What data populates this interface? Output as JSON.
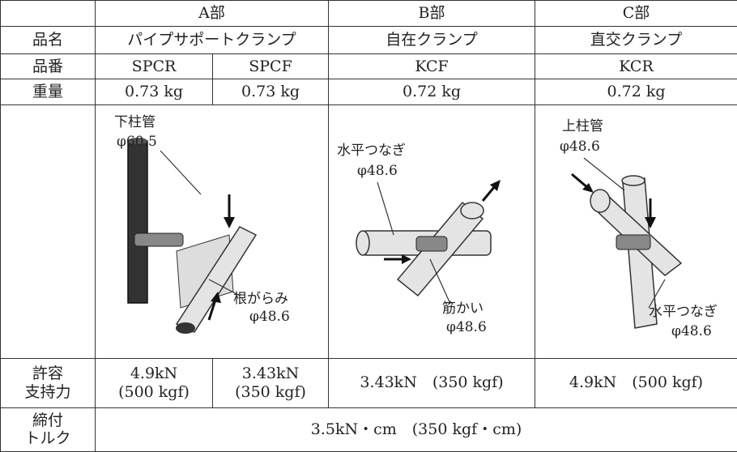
{
  "table": {
    "sections": [
      "A部",
      "B部",
      "C部"
    ],
    "rows": [
      {
        "label": [
          "品名"
        ],
        "cells": [
          [
            "パイプサポートクランプ"
          ],
          [
            "自在クランプ"
          ],
          [
            "直交クランプ"
          ]
        ]
      },
      {
        "label": [
          "品番"
        ],
        "cells": [
          [
            "SPCR"
          ],
          [
            "SPCF"
          ],
          [
            "KCF"
          ],
          [
            "KCR"
          ]
        ]
      },
      {
        "label": [
          "重量"
        ],
        "cells": [
          [
            "0.73 kg"
          ],
          [
            "0.73 kg"
          ],
          [
            "0.72 kg"
          ],
          [
            "0.72 kg"
          ]
        ]
      },
      {
        "label": [
          "許容",
          "支持力"
        ],
        "cells": [
          [
            "4.9kN",
            "(500 kgf)"
          ],
          [
            "3.43kN",
            "(350 kgf)"
          ],
          [
            "3.43kN　(350 kgf)"
          ],
          [
            "4.9kN　(500 kgf)"
          ]
        ]
      },
      {
        "label": [
          "締付",
          "トルク"
        ],
        "cells": [
          [
            "3.5kN・cm　(350 kgf・cm)"
          ]
        ]
      }
    ],
    "illustrations": [
      {
        "labels": [
          "下柱管",
          "φ60.5",
          "根がらみ",
          "φ48.6"
        ]
      },
      {
        "labels": [
          "水平つなぎ",
          "φ48.6",
          "筋かい",
          "φ48.6"
        ]
      },
      {
        "labels": [
          "上柱管",
          "φ48.6",
          "水平つなぎ",
          "φ48.6"
        ]
      }
    ]
  }
}
